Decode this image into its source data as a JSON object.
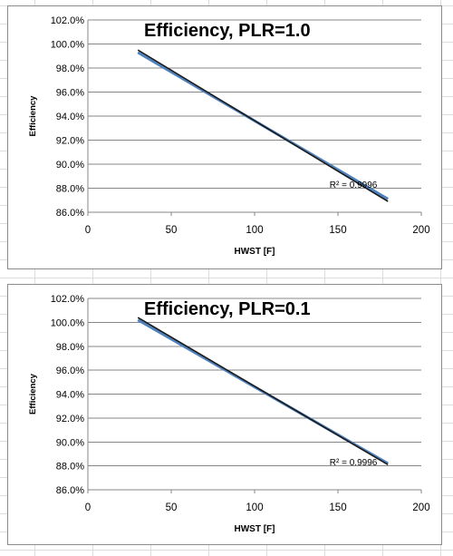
{
  "chart_data": [
    {
      "type": "scatter",
      "title": "Efficiency, PLR=1.0",
      "xlabel": "HWST [F]",
      "ylabel": "Efficiency",
      "xlim": [
        0,
        200
      ],
      "ylim": [
        0.86,
        1.02
      ],
      "xticks": [
        0,
        50,
        100,
        150,
        200
      ],
      "xtick_labels": [
        "0",
        "50",
        "100",
        "150",
        "200"
      ],
      "yticks": [
        0.86,
        0.88,
        0.9,
        0.92,
        0.94,
        0.96,
        0.98,
        1.0,
        1.02
      ],
      "ytick_labels": [
        "86.0%",
        "88.0%",
        "90.0%",
        "92.0%",
        "94.0%",
        "96.0%",
        "98.0%",
        "100.0%",
        "102.0%"
      ],
      "grid": true,
      "series": [
        {
          "color": "#4f81bd",
          "x": [
            30,
            180
          ],
          "y": [
            0.993,
            0.871
          ]
        },
        {
          "color": "#1a1a1a",
          "x": [
            30,
            180
          ],
          "y": [
            0.995,
            0.869
          ]
        }
      ],
      "annotation": "R² = 0.9996",
      "annotation_at": [
        145,
        0.8805
      ]
    },
    {
      "type": "scatter",
      "title": "Efficiency, PLR=0.1",
      "xlabel": "HWST [F]",
      "ylabel": "Efficiency",
      "xlim": [
        0,
        200
      ],
      "ylim": [
        0.86,
        1.02
      ],
      "xticks": [
        0,
        50,
        100,
        150,
        200
      ],
      "xtick_labels": [
        "0",
        "50",
        "100",
        "150",
        "200"
      ],
      "yticks": [
        0.86,
        0.88,
        0.9,
        0.92,
        0.94,
        0.96,
        0.98,
        1.0,
        1.02
      ],
      "ytick_labels": [
        "86.0%",
        "88.0%",
        "90.0%",
        "92.0%",
        "94.0%",
        "96.0%",
        "98.0%",
        "100.0%",
        "102.0%"
      ],
      "grid": true,
      "series": [
        {
          "color": "#4f81bd",
          "x": [
            30,
            180
          ],
          "y": [
            1.002,
            0.882
          ]
        },
        {
          "color": "#1a1a1a",
          "x": [
            30,
            180
          ],
          "y": [
            1.004,
            0.881
          ]
        }
      ],
      "annotation": "R² = 0.9996",
      "annotation_at": [
        145,
        0.8805
      ]
    }
  ]
}
